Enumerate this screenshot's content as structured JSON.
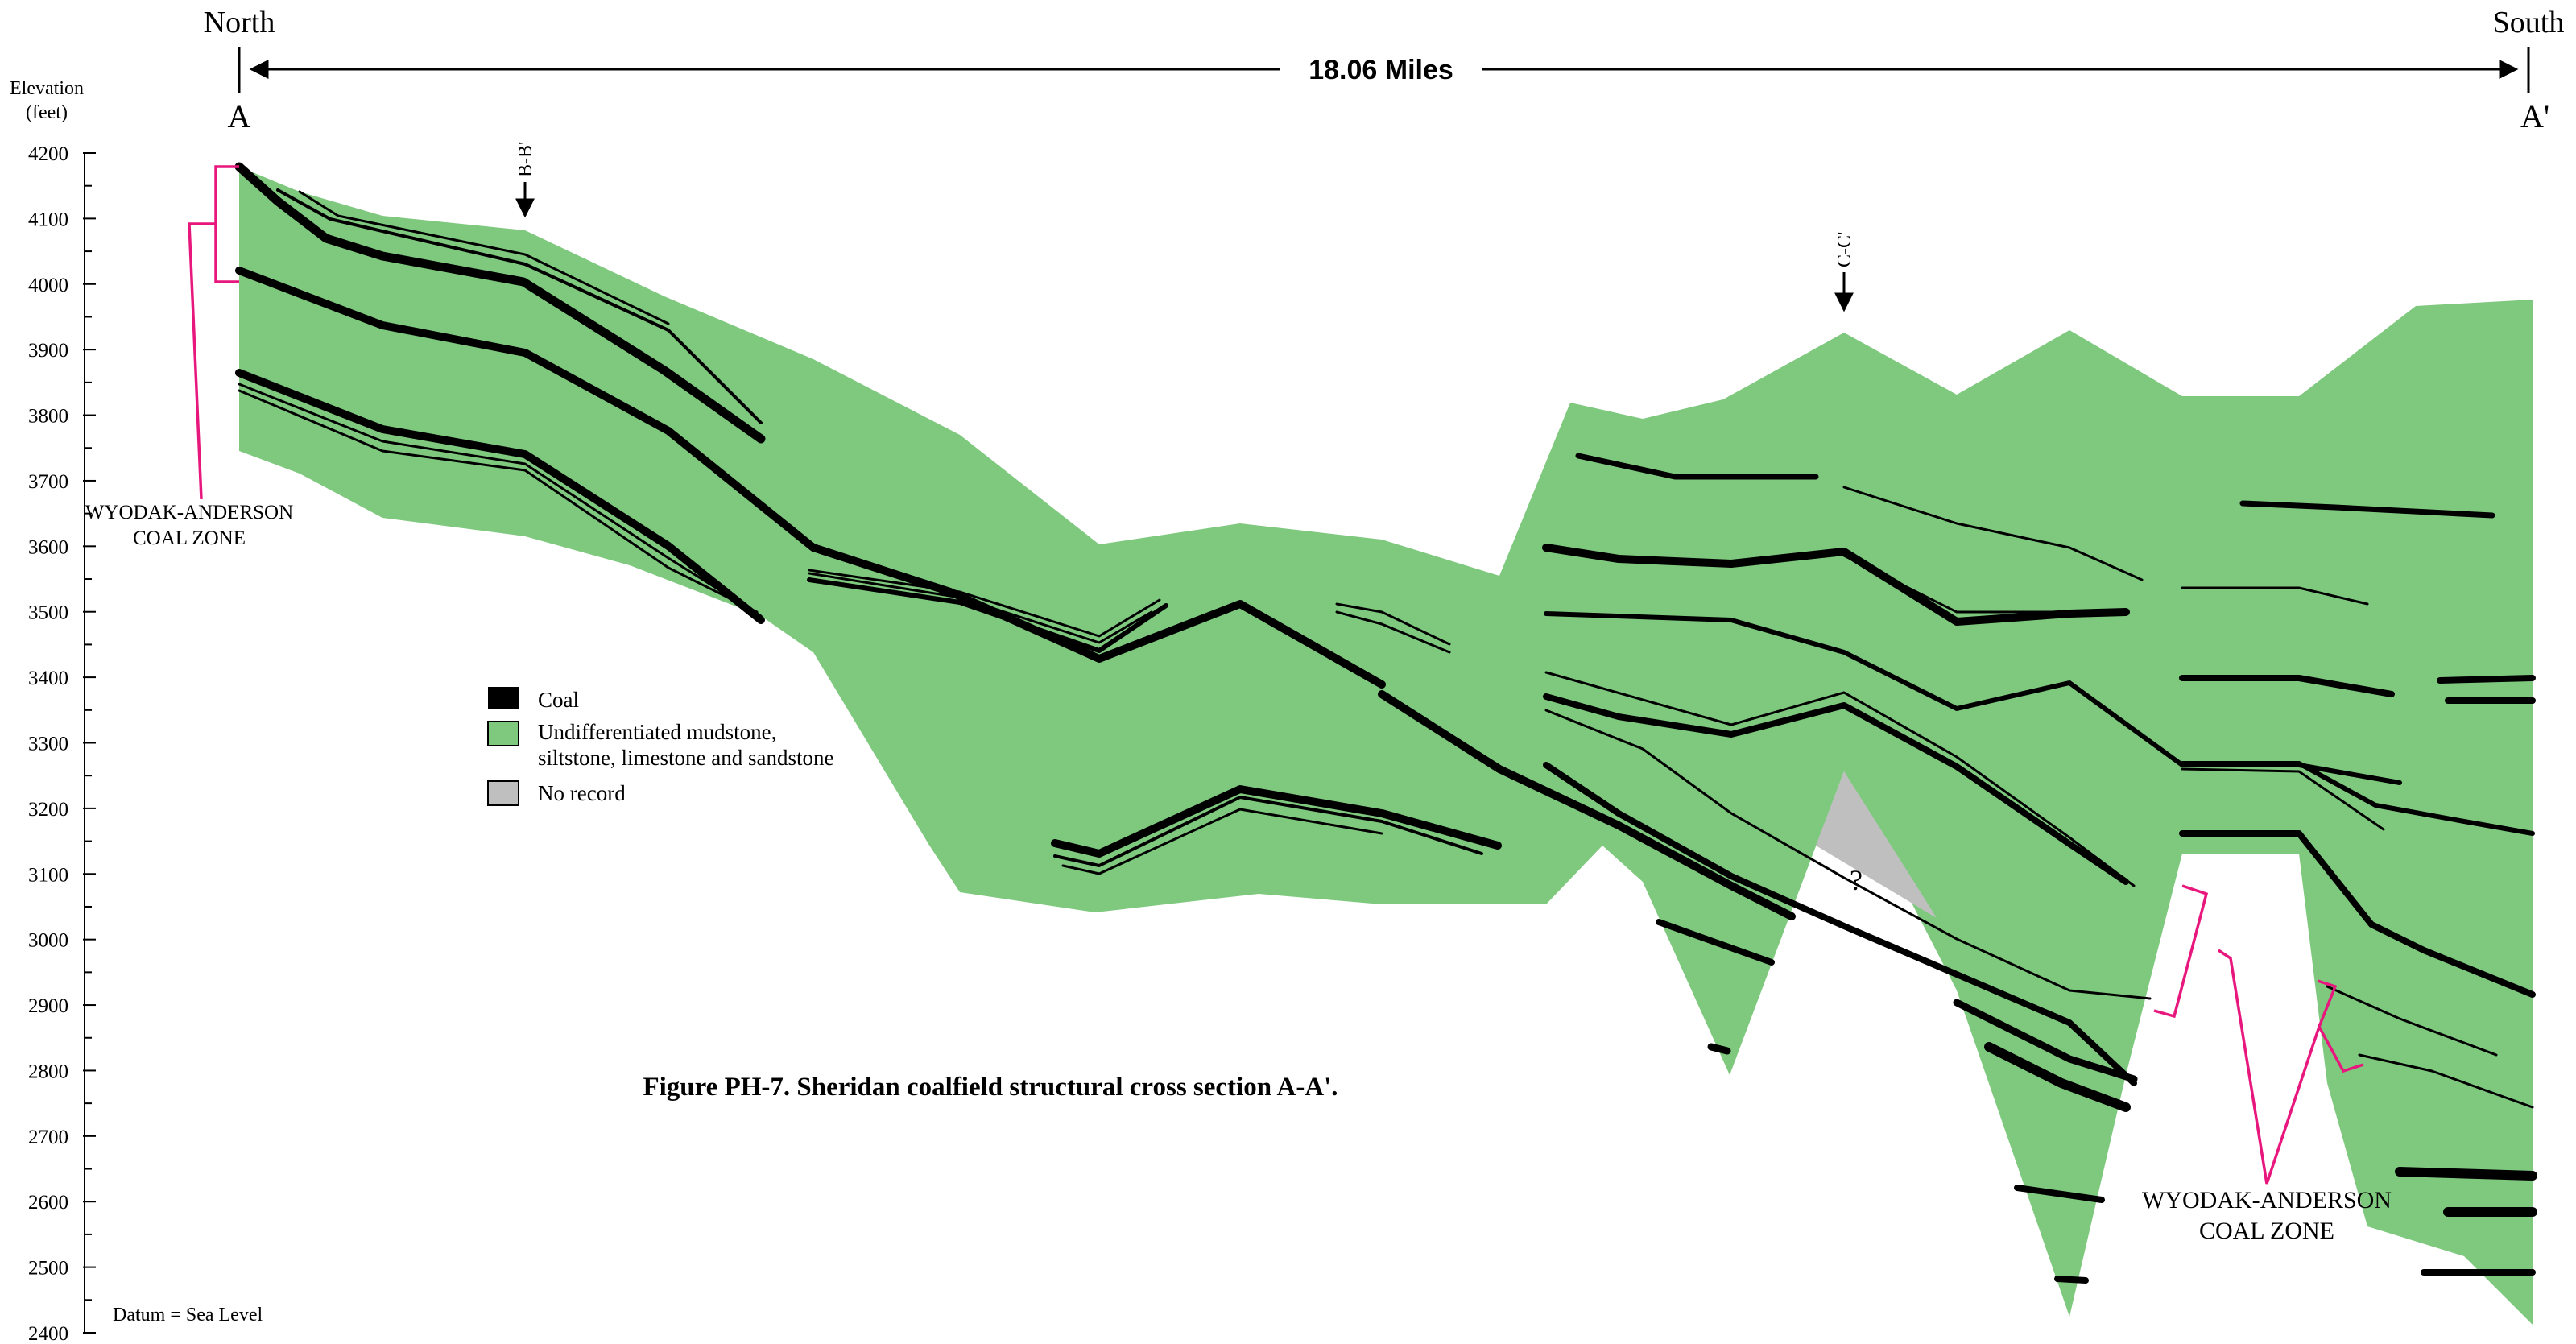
{
  "header": {
    "north_label": "North",
    "south_label": "South",
    "distance_label": "18.06 Miles",
    "point_a": "A",
    "point_a_prime": "A'"
  },
  "axis": {
    "title_line1": "Elevation",
    "title_line2": "(feet)",
    "ticks": [
      "4200",
      "4100",
      "4000",
      "3900",
      "3800",
      "3700",
      "3600",
      "3500",
      "3400",
      "3300",
      "3200",
      "3100",
      "3000",
      "2900",
      "2800",
      "2700",
      "2600",
      "2500",
      "2400"
    ],
    "min": 2400,
    "max": 4200
  },
  "section_markers": {
    "b": "B-B'",
    "c": "C-C'"
  },
  "zone_labels": {
    "north_line1": "WYODAK-ANDERSON",
    "north_line2": "COAL ZONE",
    "south_line1": "WYODAK-ANDERSON",
    "south_line2": "COAL ZONE"
  },
  "unknown_mark": "?",
  "legend": {
    "coal": "Coal",
    "mudstone_line1": "Undifferentiated mudstone,",
    "mudstone_line2": "siltstone, limestone and sandstone",
    "no_record": "No record"
  },
  "caption": "Figure PH-7.  Sheridan coalfield structural cross section A-A'.",
  "datum": "Datum = Sea Level",
  "colors": {
    "rock": "#7fc97f",
    "coal": "#000000",
    "no_record": "#bfbfbf",
    "zone_bracket": "#e8177d"
  }
}
